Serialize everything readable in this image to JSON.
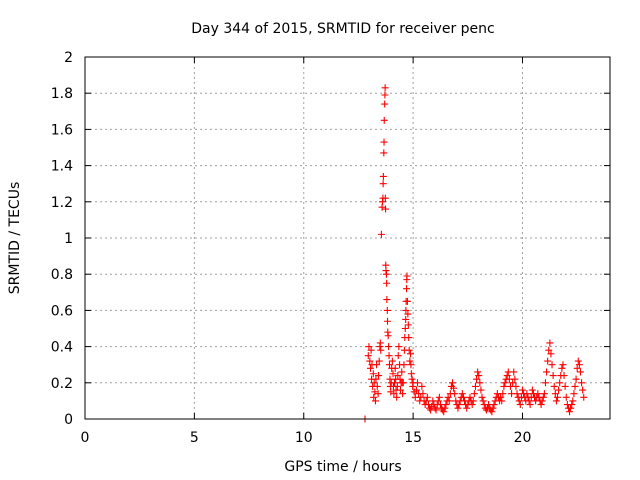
{
  "chart_data": {
    "type": "scatter",
    "title": "Day 344 of 2015, SRMTID for receiver penc",
    "xlabel": "GPS time / hours",
    "ylabel": "SRMTID / TECUs",
    "xlim": [
      0,
      24
    ],
    "ylim": [
      0,
      2
    ],
    "xticks": [
      0,
      5,
      10,
      15,
      20
    ],
    "yticks": [
      0,
      0.2,
      0.4,
      0.6,
      0.8,
      1,
      1.2,
      1.4,
      1.6,
      1.8,
      2
    ],
    "xtick_labels": [
      "0",
      "5",
      "10",
      "15",
      "20"
    ],
    "ytick_labels": [
      "0",
      "0.2",
      "0.4",
      "0.6",
      "0.8",
      "1",
      "1.2",
      "1.4",
      "1.6",
      "1.8",
      "2"
    ],
    "grid": true,
    "marker": "+",
    "color": "#ff0000",
    "series": [
      {
        "points": [
          [
            12.8,
            0.0
          ],
          [
            12.95,
            0.35
          ],
          [
            12.98,
            0.4
          ],
          [
            13.02,
            0.32
          ],
          [
            13.05,
            0.28
          ],
          [
            13.08,
            0.38
          ],
          [
            13.1,
            0.22
          ],
          [
            13.12,
            0.3
          ],
          [
            13.15,
            0.18
          ],
          [
            13.18,
            0.25
          ],
          [
            13.2,
            0.12
          ],
          [
            13.22,
            0.2
          ],
          [
            13.25,
            0.15
          ],
          [
            13.28,
            0.1
          ],
          [
            13.3,
            0.22
          ],
          [
            13.33,
            0.3
          ],
          [
            13.36,
            0.18
          ],
          [
            13.4,
            0.14
          ],
          [
            13.42,
            0.24
          ],
          [
            13.45,
            0.32
          ],
          [
            13.48,
            0.4
          ],
          [
            13.5,
            0.42
          ],
          [
            13.52,
            0.38
          ],
          [
            13.55,
            1.02
          ],
          [
            13.58,
            1.17
          ],
          [
            13.6,
            1.2
          ],
          [
            13.62,
            1.22
          ],
          [
            13.63,
            1.3
          ],
          [
            13.64,
            1.34
          ],
          [
            13.66,
            1.47
          ],
          [
            13.67,
            1.53
          ],
          [
            13.68,
            1.65
          ],
          [
            13.7,
            1.74
          ],
          [
            13.71,
            1.79
          ],
          [
            13.72,
            1.83
          ],
          [
            13.73,
            1.22
          ],
          [
            13.74,
            1.16
          ],
          [
            13.75,
            0.85
          ],
          [
            13.76,
            0.82
          ],
          [
            13.78,
            0.8
          ],
          [
            13.79,
            0.75
          ],
          [
            13.8,
            0.66
          ],
          [
            13.82,
            0.6
          ],
          [
            13.83,
            0.54
          ],
          [
            13.84,
            0.48
          ],
          [
            13.86,
            0.46
          ],
          [
            13.88,
            0.4
          ],
          [
            13.9,
            0.35
          ],
          [
            13.92,
            0.3
          ],
          [
            13.94,
            0.22
          ],
          [
            13.96,
            0.18
          ],
          [
            13.98,
            0.15
          ],
          [
            14.0,
            0.2
          ],
          [
            14.02,
            0.28
          ],
          [
            14.05,
            0.32
          ],
          [
            14.08,
            0.25
          ],
          [
            14.1,
            0.18
          ],
          [
            14.12,
            0.14
          ],
          [
            14.15,
            0.2
          ],
          [
            14.18,
            0.28
          ],
          [
            14.2,
            0.22
          ],
          [
            14.22,
            0.16
          ],
          [
            14.25,
            0.12
          ],
          [
            14.28,
            0.18
          ],
          [
            14.3,
            0.24
          ],
          [
            14.32,
            0.35
          ],
          [
            14.35,
            0.4
          ],
          [
            14.38,
            0.3
          ],
          [
            14.4,
            0.22
          ],
          [
            14.42,
            0.16
          ],
          [
            14.45,
            0.2
          ],
          [
            14.48,
            0.26
          ],
          [
            14.5,
            0.2
          ],
          [
            14.52,
            0.14
          ],
          [
            14.55,
            0.2
          ],
          [
            14.58,
            0.3
          ],
          [
            14.6,
            0.38
          ],
          [
            14.62,
            0.45
          ],
          [
            14.64,
            0.5
          ],
          [
            14.66,
            0.55
          ],
          [
            14.67,
            0.6
          ],
          [
            14.68,
            0.65
          ],
          [
            14.7,
            0.72
          ],
          [
            14.71,
            0.77
          ],
          [
            14.72,
            0.79
          ],
          [
            14.74,
            0.65
          ],
          [
            14.76,
            0.58
          ],
          [
            14.78,
            0.52
          ],
          [
            14.8,
            0.45
          ],
          [
            14.82,
            0.38
          ],
          [
            14.85,
            0.32
          ],
          [
            14.88,
            0.36
          ],
          [
            14.9,
            0.3
          ],
          [
            14.92,
            0.25
          ],
          [
            14.95,
            0.22
          ],
          [
            14.98,
            0.18
          ],
          [
            15.0,
            0.2
          ],
          [
            15.05,
            0.15
          ],
          [
            15.1,
            0.12
          ],
          [
            15.15,
            0.16
          ],
          [
            15.2,
            0.2
          ],
          [
            15.25,
            0.14
          ],
          [
            15.3,
            0.1
          ],
          [
            15.35,
            0.12
          ],
          [
            15.4,
            0.18
          ],
          [
            15.45,
            0.14
          ],
          [
            15.5,
            0.1
          ],
          [
            15.55,
            0.08
          ],
          [
            15.6,
            0.1
          ],
          [
            15.65,
            0.12
          ],
          [
            15.7,
            0.08
          ],
          [
            15.75,
            0.06
          ],
          [
            15.8,
            0.05
          ],
          [
            15.85,
            0.07
          ],
          [
            15.9,
            0.1
          ],
          [
            15.95,
            0.08
          ],
          [
            16.0,
            0.06
          ],
          [
            16.05,
            0.05
          ],
          [
            16.1,
            0.08
          ],
          [
            16.15,
            0.1
          ],
          [
            16.2,
            0.12
          ],
          [
            16.25,
            0.08
          ],
          [
            16.3,
            0.06
          ],
          [
            16.35,
            0.05
          ],
          [
            16.4,
            0.04
          ],
          [
            16.45,
            0.06
          ],
          [
            16.5,
            0.08
          ],
          [
            16.55,
            0.1
          ],
          [
            16.6,
            0.12
          ],
          [
            16.65,
            0.1
          ],
          [
            16.7,
            0.14
          ],
          [
            16.75,
            0.18
          ],
          [
            16.8,
            0.2
          ],
          [
            16.85,
            0.17
          ],
          [
            16.9,
            0.14
          ],
          [
            16.95,
            0.1
          ],
          [
            17.0,
            0.08
          ],
          [
            17.05,
            0.06
          ],
          [
            17.1,
            0.08
          ],
          [
            17.15,
            0.1
          ],
          [
            17.2,
            0.12
          ],
          [
            17.25,
            0.14
          ],
          [
            17.3,
            0.12
          ],
          [
            17.35,
            0.1
          ],
          [
            17.4,
            0.08
          ],
          [
            17.45,
            0.06
          ],
          [
            17.5,
            0.08
          ],
          [
            17.55,
            0.1
          ],
          [
            17.6,
            0.12
          ],
          [
            17.65,
            0.1
          ],
          [
            17.7,
            0.08
          ],
          [
            17.75,
            0.1
          ],
          [
            17.8,
            0.14
          ],
          [
            17.85,
            0.18
          ],
          [
            17.9,
            0.22
          ],
          [
            17.95,
            0.26
          ],
          [
            18.0,
            0.24
          ],
          [
            18.05,
            0.2
          ],
          [
            18.1,
            0.16
          ],
          [
            18.15,
            0.12
          ],
          [
            18.2,
            0.1
          ],
          [
            18.25,
            0.08
          ],
          [
            18.3,
            0.06
          ],
          [
            18.35,
            0.05
          ],
          [
            18.4,
            0.06
          ],
          [
            18.45,
            0.08
          ],
          [
            18.5,
            0.06
          ],
          [
            18.55,
            0.05
          ],
          [
            18.6,
            0.04
          ],
          [
            18.65,
            0.06
          ],
          [
            18.7,
            0.08
          ],
          [
            18.75,
            0.1
          ],
          [
            18.8,
            0.12
          ],
          [
            18.85,
            0.14
          ],
          [
            18.9,
            0.12
          ],
          [
            18.95,
            0.1
          ],
          [
            19.0,
            0.12
          ],
          [
            19.05,
            0.1
          ],
          [
            19.1,
            0.14
          ],
          [
            19.15,
            0.18
          ],
          [
            19.2,
            0.2
          ],
          [
            19.25,
            0.22
          ],
          [
            19.3,
            0.24
          ],
          [
            19.35,
            0.26
          ],
          [
            19.4,
            0.22
          ],
          [
            19.45,
            0.18
          ],
          [
            19.5,
            0.14
          ],
          [
            19.55,
            0.2
          ],
          [
            19.6,
            0.26
          ],
          [
            19.65,
            0.22
          ],
          [
            19.7,
            0.18
          ],
          [
            19.75,
            0.14
          ],
          [
            19.8,
            0.12
          ],
          [
            19.85,
            0.1
          ],
          [
            19.9,
            0.08
          ],
          [
            19.95,
            0.12
          ],
          [
            20.0,
            0.16
          ],
          [
            20.05,
            0.14
          ],
          [
            20.1,
            0.12
          ],
          [
            20.15,
            0.1
          ],
          [
            20.2,
            0.14
          ],
          [
            20.25,
            0.12
          ],
          [
            20.3,
            0.1
          ],
          [
            20.35,
            0.08
          ],
          [
            20.4,
            0.12
          ],
          [
            20.45,
            0.16
          ],
          [
            20.5,
            0.14
          ],
          [
            20.55,
            0.12
          ],
          [
            20.6,
            0.1
          ],
          [
            20.65,
            0.12
          ],
          [
            20.7,
            0.14
          ],
          [
            20.75,
            0.12
          ],
          [
            20.8,
            0.1
          ],
          [
            20.85,
            0.08
          ],
          [
            20.9,
            0.1
          ],
          [
            20.95,
            0.12
          ],
          [
            21.0,
            0.14
          ],
          [
            21.05,
            0.2
          ],
          [
            21.1,
            0.26
          ],
          [
            21.15,
            0.32
          ],
          [
            21.2,
            0.38
          ],
          [
            21.25,
            0.42
          ],
          [
            21.3,
            0.36
          ],
          [
            21.35,
            0.3
          ],
          [
            21.4,
            0.24
          ],
          [
            21.45,
            0.18
          ],
          [
            21.5,
            0.14
          ],
          [
            21.55,
            0.1
          ],
          [
            21.6,
            0.12
          ],
          [
            21.65,
            0.16
          ],
          [
            21.7,
            0.2
          ],
          [
            21.75,
            0.24
          ],
          [
            21.8,
            0.28
          ],
          [
            21.85,
            0.3
          ],
          [
            21.9,
            0.24
          ],
          [
            21.95,
            0.18
          ],
          [
            22.0,
            0.12
          ],
          [
            22.05,
            0.08
          ],
          [
            22.1,
            0.06
          ],
          [
            22.15,
            0.04
          ],
          [
            22.2,
            0.06
          ],
          [
            22.25,
            0.08
          ],
          [
            22.3,
            0.1
          ],
          [
            22.35,
            0.14
          ],
          [
            22.4,
            0.18
          ],
          [
            22.45,
            0.22
          ],
          [
            22.5,
            0.28
          ],
          [
            22.55,
            0.32
          ],
          [
            22.6,
            0.3
          ],
          [
            22.65,
            0.26
          ],
          [
            22.7,
            0.2
          ],
          [
            22.75,
            0.16
          ],
          [
            22.8,
            0.12
          ]
        ]
      }
    ]
  }
}
